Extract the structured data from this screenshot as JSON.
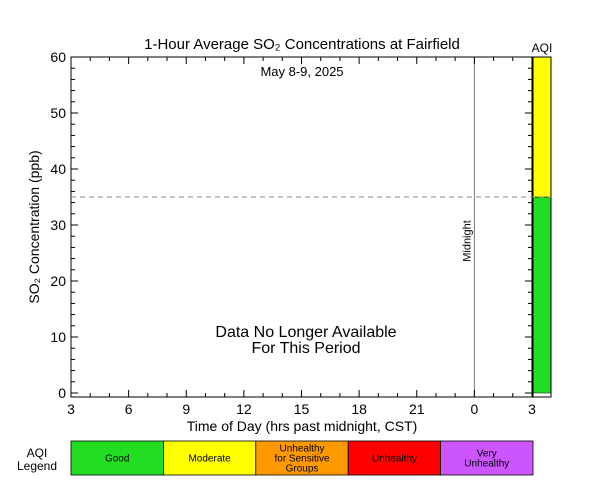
{
  "chart_data": {
    "type": "line",
    "title": "1-Hour Average SO₂ Concentrations at Fairfield",
    "subtitle": "May 8-9, 2025",
    "xlabel": "Time of Day (hrs past midnight, CST)",
    "ylabel": "SO₂ Concentration (ppb)",
    "x_ticks": [
      "3",
      "6",
      "9",
      "12",
      "15",
      "18",
      "21",
      "0",
      "3"
    ],
    "x_range_hours": [
      3,
      27
    ],
    "y_ticks": [
      "0",
      "10",
      "20",
      "30",
      "40",
      "50",
      "60"
    ],
    "ylim": [
      0,
      60
    ],
    "midnight_label": "Midnight",
    "midnight_hour": 24,
    "reference_line_ppb": 35,
    "message_line1": "Data No Longer Available",
    "message_line2": "For This Period",
    "series": [],
    "aqi_bar": {
      "label": "AQI",
      "segments": [
        {
          "from": 0,
          "to": 35,
          "color": "#22dd22"
        },
        {
          "from": 35,
          "to": 60,
          "color": "#ffff00"
        }
      ]
    },
    "aqi_legend": {
      "title_line1": "AQI",
      "title_line2": "Legend",
      "items": [
        {
          "lines": [
            "Good"
          ],
          "color": "#22dd22"
        },
        {
          "lines": [
            "Moderate"
          ],
          "color": "#ffff00"
        },
        {
          "lines": [
            "Unhealthy",
            "for Sensitive",
            "Groups"
          ],
          "color": "#ff9900"
        },
        {
          "lines": [
            "Unhealthy"
          ],
          "color": "#ff0000"
        },
        {
          "lines": [
            "Very",
            "Unhealthy"
          ],
          "color": "#cc55ff"
        }
      ]
    }
  }
}
